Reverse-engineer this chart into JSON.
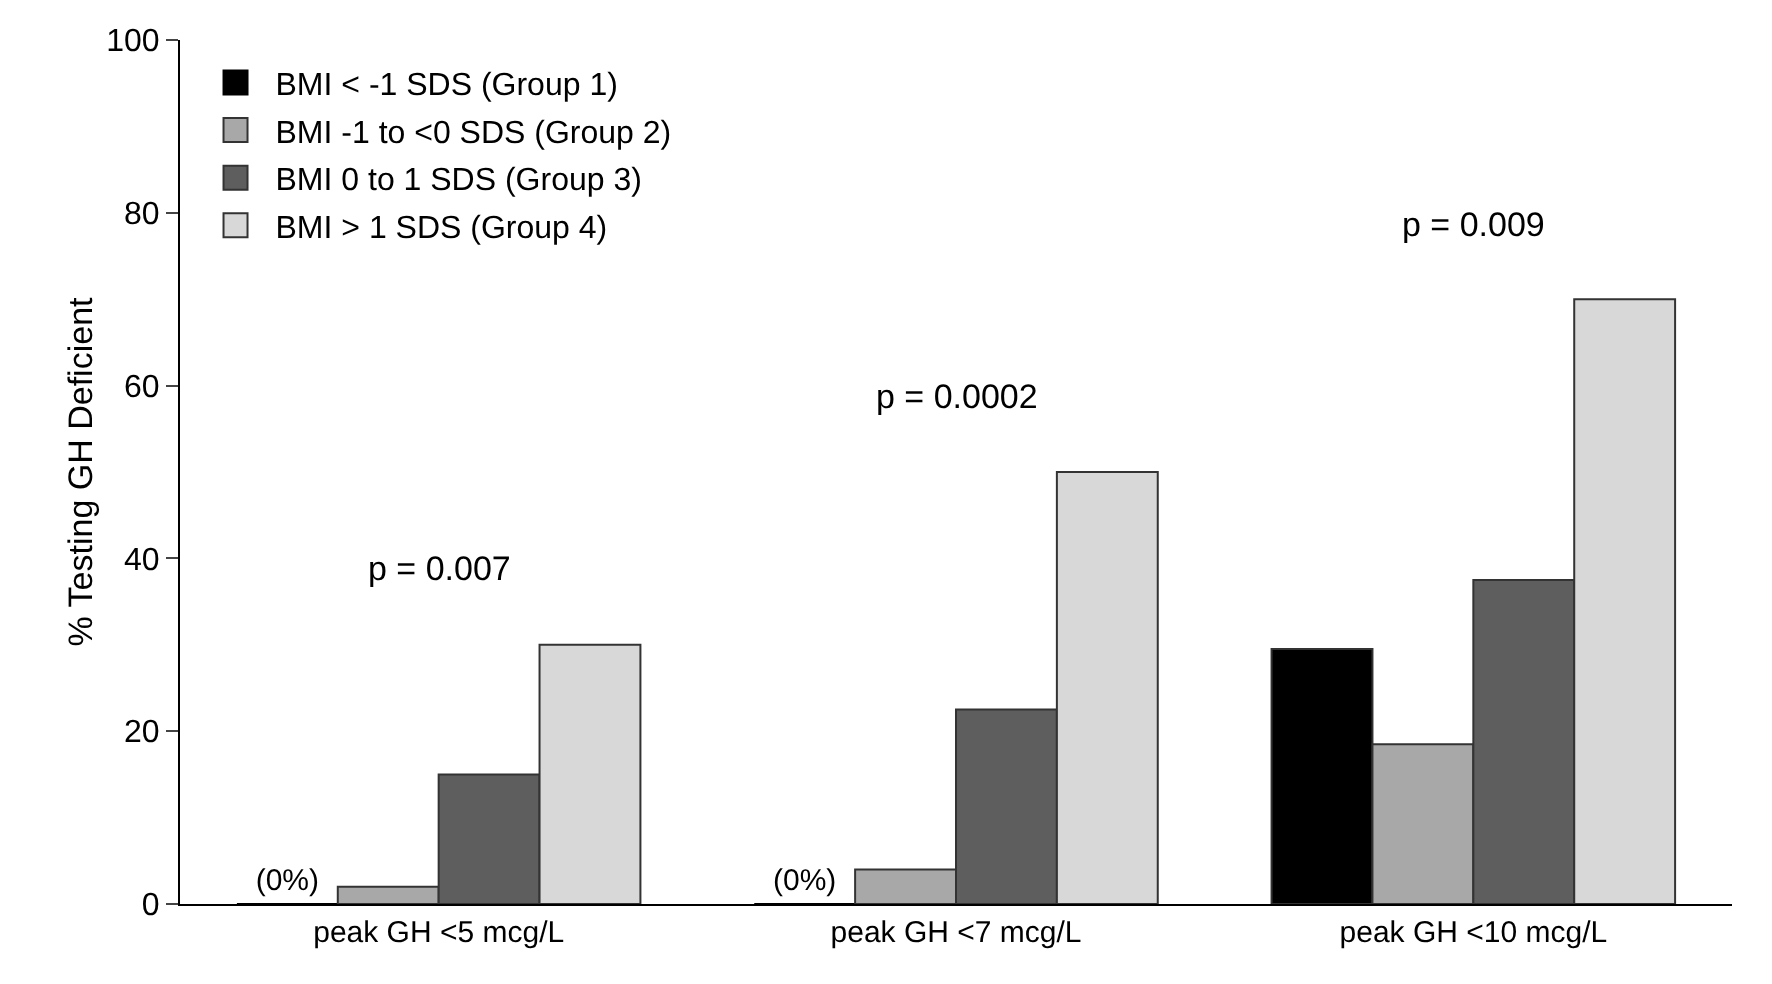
{
  "chart_data": {
    "type": "bar",
    "ylabel": "% Testing GH Deficient",
    "categories": [
      "peak GH <5 mcg/L",
      "peak GH <7 mcg/L",
      "peak GH <10 mcg/L"
    ],
    "series": [
      {
        "name": "BMI < -1 SDS (Group 1)",
        "color": "#000000",
        "values": [
          0,
          0,
          29.5
        ],
        "value_labels": [
          "(0%)",
          "(0%)",
          null
        ]
      },
      {
        "name": "BMI -1 to <0 SDS (Group 2)",
        "color": "#a8a8a8",
        "values": [
          2,
          4,
          18.5
        ]
      },
      {
        "name": "BMI 0 to 1 SDS (Group 3)",
        "color": "#5e5e5e",
        "values": [
          15,
          22.5,
          37.5
        ]
      },
      {
        "name": "BMI > 1 SDS (Group 4)",
        "color": "#d8d8d8",
        "values": [
          30,
          50,
          70
        ]
      }
    ],
    "ylim": [
      0,
      100
    ],
    "yticks": [
      0,
      20,
      40,
      60,
      80,
      100
    ],
    "grid": false,
    "legend": "top left",
    "annotations": [
      "p = 0.007",
      "p = 0.0002",
      "p = 0.009"
    ]
  }
}
